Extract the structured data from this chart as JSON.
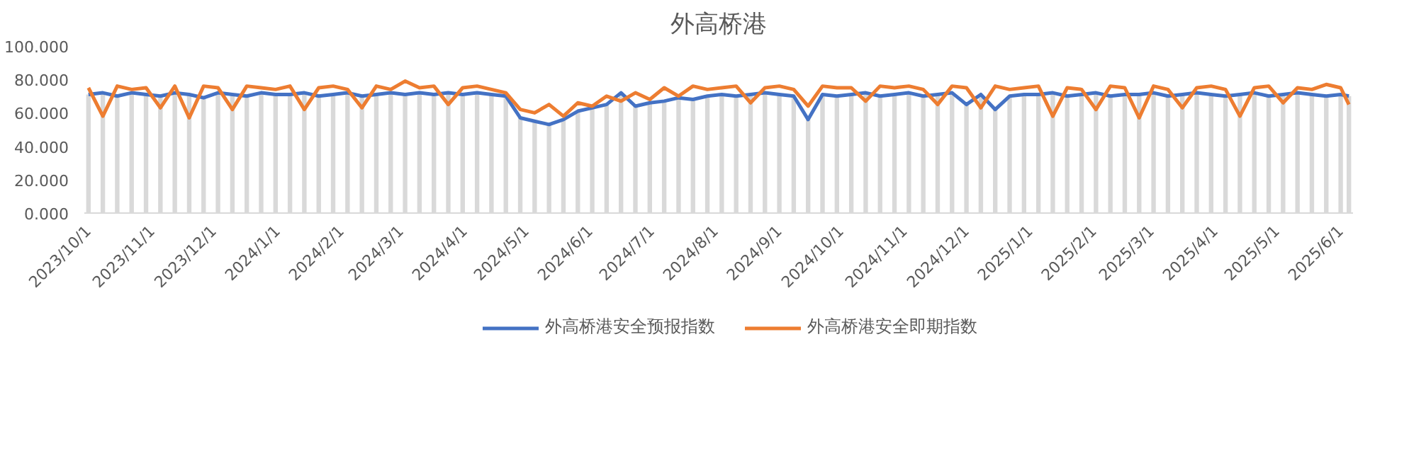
{
  "chart_data": {
    "type": "line",
    "title": "外高桥港",
    "x": [
      "2023-10-01",
      "2023-10-08",
      "2023-10-15",
      "2023-10-22",
      "2023-10-29",
      "2023-11-05",
      "2023-11-12",
      "2023-11-19",
      "2023-11-26",
      "2023-12-03",
      "2023-12-10",
      "2023-12-17",
      "2023-12-24",
      "2023-12-31",
      "2024-01-07",
      "2024-01-14",
      "2024-01-21",
      "2024-01-28",
      "2024-02-04",
      "2024-02-11",
      "2024-02-18",
      "2024-02-25",
      "2024-03-03",
      "2024-03-10",
      "2024-03-17",
      "2024-03-24",
      "2024-03-31",
      "2024-04-07",
      "2024-04-14",
      "2024-04-21",
      "2024-04-28",
      "2024-05-05",
      "2024-05-12",
      "2024-05-19",
      "2024-05-26",
      "2024-06-02",
      "2024-06-09",
      "2024-06-16",
      "2024-06-23",
      "2024-06-30",
      "2024-07-07",
      "2024-07-14",
      "2024-07-21",
      "2024-07-28",
      "2024-08-04",
      "2024-08-11",
      "2024-08-18",
      "2024-08-25",
      "2024-09-01",
      "2024-09-08",
      "2024-09-15",
      "2024-09-22",
      "2024-09-29",
      "2024-10-06",
      "2024-10-13",
      "2024-10-20",
      "2024-10-27",
      "2024-11-03",
      "2024-11-10",
      "2024-11-17",
      "2024-11-24",
      "2024-12-01",
      "2024-12-08",
      "2024-12-15",
      "2024-12-22",
      "2024-12-29",
      "2025-01-05",
      "2025-01-12",
      "2025-01-19",
      "2025-01-26",
      "2025-02-02",
      "2025-02-09",
      "2025-02-16",
      "2025-02-23",
      "2025-03-02",
      "2025-03-09",
      "2025-03-16",
      "2025-03-23",
      "2025-03-30",
      "2025-04-06",
      "2025-04-13",
      "2025-04-20",
      "2025-04-27",
      "2025-05-04",
      "2025-05-11",
      "2025-05-18",
      "2025-05-25",
      "2025-06-01",
      "2025-06-05"
    ],
    "series": [
      {
        "type": "bar",
        "color": "#d9d9d9",
        "values": [
          71,
          72,
          70,
          72,
          71,
          70,
          72,
          71,
          69,
          72,
          71,
          70,
          72,
          71,
          71,
          72,
          70,
          71,
          72,
          70,
          71,
          72,
          71,
          72,
          71,
          72,
          71,
          72,
          71,
          70,
          57,
          55,
          53,
          56,
          61,
          63,
          65,
          72,
          64,
          66,
          67,
          69,
          68,
          70,
          71,
          70,
          71,
          72,
          71,
          70,
          56,
          71,
          70,
          71,
          72,
          70,
          71,
          72,
          70,
          71,
          72,
          65,
          71,
          62,
          70,
          71,
          71,
          72,
          70,
          71,
          72,
          70,
          71,
          71,
          72,
          70,
          71,
          72,
          71,
          70,
          71,
          72,
          70,
          71,
          72,
          71,
          70,
          71,
          70
        ]
      },
      {
        "name": "外高桥港安全预报指数",
        "color": "#4472c4",
        "values": [
          71,
          72,
          70,
          72,
          71,
          70,
          72,
          71,
          69,
          72,
          71,
          70,
          72,
          71,
          71,
          72,
          70,
          71,
          72,
          70,
          71,
          72,
          71,
          72,
          71,
          72,
          71,
          72,
          71,
          70,
          57,
          55,
          53,
          56,
          61,
          63,
          65,
          72,
          64,
          66,
          67,
          69,
          68,
          70,
          71,
          70,
          71,
          72,
          71,
          70,
          56,
          71,
          70,
          71,
          72,
          70,
          71,
          72,
          70,
          71,
          72,
          65,
          71,
          62,
          70,
          71,
          71,
          72,
          70,
          71,
          72,
          70,
          71,
          71,
          72,
          70,
          71,
          72,
          71,
          70,
          71,
          72,
          70,
          71,
          72,
          71,
          70,
          71,
          70
        ]
      },
      {
        "name": "外高桥港安全即期指数",
        "color": "#ed7d31",
        "values": [
          75,
          58,
          76,
          74,
          75,
          63,
          76,
          57,
          76,
          75,
          62,
          76,
          75,
          74,
          76,
          62,
          75,
          76,
          74,
          63,
          76,
          74,
          79,
          75,
          76,
          65,
          75,
          76,
          74,
          72,
          62,
          60,
          65,
          58,
          66,
          64,
          70,
          67,
          72,
          68,
          75,
          70,
          76,
          74,
          75,
          76,
          66,
          75,
          76,
          74,
          64,
          76,
          75,
          75,
          67,
          76,
          75,
          76,
          74,
          65,
          76,
          75,
          63,
          76,
          74,
          75,
          76,
          58,
          75,
          74,
          62,
          76,
          75,
          57,
          76,
          74,
          63,
          75,
          76,
          74,
          58,
          75,
          76,
          66,
          75,
          74,
          77,
          75,
          65
        ]
      }
    ],
    "xlim": [
      "2023-09-29",
      "2025-06-07"
    ],
    "xticks": [
      {
        "value": "2023-10-01",
        "label": "2023/10/1"
      },
      {
        "value": "2023-11-01",
        "label": "2023/11/1"
      },
      {
        "value": "2023-12-01",
        "label": "2023/12/1"
      },
      {
        "value": "2024-01-01",
        "label": "2024/1/1"
      },
      {
        "value": "2024-02-01",
        "label": "2024/2/1"
      },
      {
        "value": "2024-03-01",
        "label": "2024/3/1"
      },
      {
        "value": "2024-04-01",
        "label": "2024/4/1"
      },
      {
        "value": "2024-05-01",
        "label": "2024/5/1"
      },
      {
        "value": "2024-06-01",
        "label": "2024/6/1"
      },
      {
        "value": "2024-07-01",
        "label": "2024/7/1"
      },
      {
        "value": "2024-08-01",
        "label": "2024/8/1"
      },
      {
        "value": "2024-09-01",
        "label": "2024/9/1"
      },
      {
        "value": "2024-10-01",
        "label": "2024/10/1"
      },
      {
        "value": "2024-11-01",
        "label": "2024/11/1"
      },
      {
        "value": "2024-12-01",
        "label": "2024/12/1"
      },
      {
        "value": "2025-01-01",
        "label": "2025/1/1"
      },
      {
        "value": "2025-02-01",
        "label": "2025/2/1"
      },
      {
        "value": "2025-03-01",
        "label": "2025/3/1"
      },
      {
        "value": "2025-04-01",
        "label": "2025/4/1"
      },
      {
        "value": "2025-05-01",
        "label": "2025/5/1"
      },
      {
        "value": "2025-06-01",
        "label": "2025/6/1"
      }
    ],
    "ylim": [
      0,
      100
    ],
    "yticks": [
      {
        "value": 0,
        "label": "0.000"
      },
      {
        "value": 20,
        "label": "20.000"
      },
      {
        "value": 40,
        "label": "40.000"
      },
      {
        "value": 60,
        "label": "60.000"
      },
      {
        "value": 80,
        "label": "80.000"
      },
      {
        "value": 100,
        "label": "100.000"
      }
    ],
    "grid": false,
    "legend": "bottom",
    "line_style": "solid"
  }
}
